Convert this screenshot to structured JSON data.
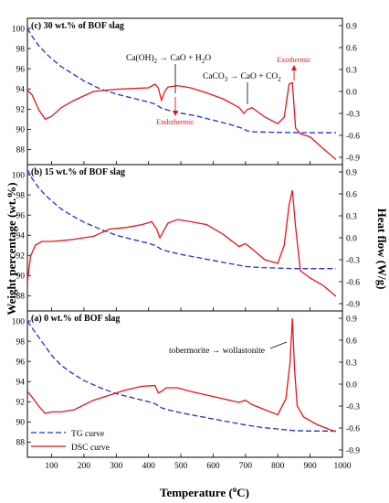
{
  "chart_data": {
    "type": "line",
    "x_axis": {
      "label_prefix": "Temperature (",
      "label_sup": "o",
      "label_suffix": "C)",
      "range": [
        25,
        1000
      ],
      "ticks": [
        "100",
        "200",
        "300",
        "400",
        "500",
        "600",
        "700",
        "800",
        "900",
        "1000"
      ],
      "tick_values": [
        100,
        200,
        300,
        400,
        500,
        600,
        700,
        800,
        900,
        1000
      ]
    },
    "y_left": {
      "label": "Weight percentage (wt.%)",
      "range": [
        86.5,
        101
      ]
    },
    "y_right": {
      "label": "Heat flow (W/g)",
      "range": [
        -1.0,
        1.0
      ]
    },
    "legend": {
      "placement": "bottom-left",
      "entries": [
        {
          "label": "TG curve",
          "color": "#1f2ee0",
          "dash": true
        },
        {
          "label": "DSC curve",
          "color": "#e8141b",
          "dash": false
        }
      ]
    },
    "colors": {
      "tg": "#1f2ee0",
      "dsc": "#e8141b",
      "annotation": "#e8141b"
    },
    "panels": [
      {
        "id": "c",
        "title": "(c) 30 wt.% of BOF slag",
        "left_ticks": [
          "88",
          "90",
          "92",
          "94",
          "96",
          "98",
          "100"
        ],
        "left_tick_values": [
          88,
          90,
          92,
          94,
          96,
          98,
          100
        ],
        "right_ticks": [
          "-0.9",
          "-0.6",
          "-0.3",
          "0.0",
          "0.3",
          "0.6",
          "0.9"
        ],
        "right_tick_values": [
          -0.9,
          -0.6,
          -0.3,
          0.0,
          0.3,
          0.6,
          0.9
        ],
        "annotations": {
          "reaction1": {
            "pre": "Ca(OH)",
            "sub": "2",
            "post": " → CaO + H",
            "sub2": "2",
            "post2": "O"
          },
          "reaction2": {
            "pre": "CaCO",
            "sub": "3",
            "post": " → CaO + CO",
            "sub2": "2",
            "post2": ""
          },
          "endothermic": "Endothermic",
          "exothermic": "Exothermic"
        },
        "tg": {
          "x": [
            25,
            40,
            60,
            80,
            100,
            130,
            160,
            200,
            250,
            300,
            350,
            400,
            420,
            440,
            460,
            500,
            550,
            600,
            650,
            690,
            705,
            720,
            800,
            900,
            980
          ],
          "y": [
            100,
            99.2,
            98.3,
            97.6,
            97.0,
            96.2,
            95.6,
            94.8,
            94.0,
            93.5,
            93.1,
            92.7,
            92.5,
            92.1,
            91.9,
            91.6,
            91.3,
            90.9,
            90.5,
            90.1,
            89.85,
            89.75,
            89.7,
            89.65,
            89.65
          ]
        },
        "dsc": {
          "x": [
            25,
            40,
            60,
            80,
            100,
            130,
            170,
            230,
            300,
            350,
            400,
            420,
            430,
            440,
            450,
            460,
            490,
            530,
            580,
            630,
            680,
            695,
            705,
            720,
            760,
            800,
            820,
            835,
            845,
            855,
            870,
            900,
            940,
            980
          ],
          "y": [
            0.02,
            -0.05,
            -0.25,
            -0.38,
            -0.34,
            -0.22,
            -0.12,
            0.0,
            0.03,
            0.04,
            0.05,
            0.1,
            0.05,
            -0.12,
            0.0,
            0.06,
            0.08,
            0.05,
            -0.02,
            -0.1,
            -0.22,
            -0.3,
            -0.25,
            -0.22,
            -0.35,
            -0.44,
            -0.35,
            0.1,
            0.12,
            -0.5,
            -0.58,
            -0.62,
            -0.78,
            -0.93
          ]
        }
      },
      {
        "id": "b",
        "title": "(b) 15 wt.% of BOF slag",
        "left_ticks": [
          "88",
          "90",
          "92",
          "94",
          "96",
          "98",
          "100"
        ],
        "left_tick_values": [
          88,
          90,
          92,
          94,
          96,
          98,
          100
        ],
        "right_ticks": [
          "-0.9",
          "-0.6",
          "-0.3",
          "0.0",
          "0.3",
          "0.6",
          "0.9"
        ],
        "right_tick_values": [
          -0.9,
          -0.6,
          -0.3,
          0.0,
          0.3,
          0.6,
          0.9
        ],
        "tg": {
          "x": [
            25,
            40,
            60,
            80,
            100,
            130,
            160,
            200,
            250,
            300,
            350,
            400,
            420,
            440,
            460,
            500,
            550,
            600,
            650,
            700,
            750,
            800,
            850,
            900,
            980
          ],
          "y": [
            100.5,
            99.6,
            98.7,
            98.0,
            97.4,
            96.6,
            96.0,
            95.3,
            94.6,
            94.0,
            93.6,
            93.2,
            93.0,
            92.6,
            92.4,
            92.1,
            91.8,
            91.5,
            91.2,
            90.9,
            90.8,
            90.75,
            90.7,
            90.7,
            90.7
          ]
        },
        "dsc": {
          "x": [
            25,
            35,
            50,
            70,
            100,
            130,
            170,
            230,
            280,
            330,
            380,
            410,
            425,
            435,
            445,
            460,
            490,
            530,
            580,
            630,
            680,
            700,
            720,
            760,
            800,
            820,
            835,
            845,
            855,
            870,
            900,
            940,
            980
          ],
          "y": [
            -0.6,
            -0.25,
            -0.1,
            -0.05,
            -0.05,
            -0.04,
            -0.02,
            0.02,
            0.12,
            0.14,
            0.18,
            0.22,
            0.12,
            0.0,
            0.08,
            0.2,
            0.25,
            0.22,
            0.18,
            0.05,
            -0.12,
            -0.08,
            -0.15,
            -0.3,
            -0.35,
            -0.1,
            0.45,
            0.65,
            0.15,
            -0.45,
            -0.55,
            -0.65,
            -0.8
          ]
        }
      },
      {
        "id": "a",
        "title": "(a) 0 wt.% of BOF slag",
        "left_ticks": [
          "88",
          "90",
          "92",
          "94",
          "96",
          "98",
          "100"
        ],
        "left_tick_values": [
          88,
          90,
          92,
          94,
          96,
          98,
          100
        ],
        "right_ticks": [
          "-0.9",
          "-0.6",
          "-0.3",
          "0.0",
          "0.3",
          "0.6",
          "0.9"
        ],
        "right_tick_values": [
          -0.9,
          -0.6,
          -0.3,
          0.0,
          0.3,
          0.6,
          0.9
        ],
        "annotations": {
          "transition": "tobermorite → wollastonite"
        },
        "tg": {
          "x": [
            25,
            40,
            60,
            80,
            100,
            130,
            160,
            200,
            250,
            300,
            350,
            400,
            420,
            440,
            460,
            500,
            550,
            600,
            650,
            700,
            750,
            800,
            850,
            900,
            980
          ],
          "y": [
            100.0,
            99.3,
            98.4,
            97.5,
            96.6,
            95.6,
            94.9,
            94.1,
            93.4,
            92.8,
            92.4,
            92.0,
            91.8,
            91.4,
            91.2,
            90.9,
            90.6,
            90.3,
            90.0,
            89.7,
            89.45,
            89.3,
            89.15,
            89.1,
            89.1
          ]
        },
        "dsc": {
          "x": [
            25,
            40,
            60,
            80,
            100,
            130,
            170,
            230,
            280,
            330,
            380,
            420,
            430,
            440,
            455,
            490,
            530,
            580,
            630,
            680,
            700,
            720,
            760,
            800,
            825,
            838,
            845,
            852,
            860,
            880,
            920,
            960,
            980
          ],
          "y": [
            -0.1,
            -0.18,
            -0.3,
            -0.4,
            -0.38,
            -0.38,
            -0.35,
            -0.22,
            -0.15,
            -0.08,
            -0.03,
            -0.02,
            -0.12,
            -0.1,
            -0.05,
            -0.05,
            -0.1,
            -0.15,
            -0.2,
            -0.25,
            -0.22,
            -0.28,
            -0.35,
            -0.42,
            -0.2,
            0.3,
            0.9,
            0.2,
            -0.3,
            -0.45,
            -0.55,
            -0.62,
            -0.65
          ]
        }
      }
    ]
  }
}
